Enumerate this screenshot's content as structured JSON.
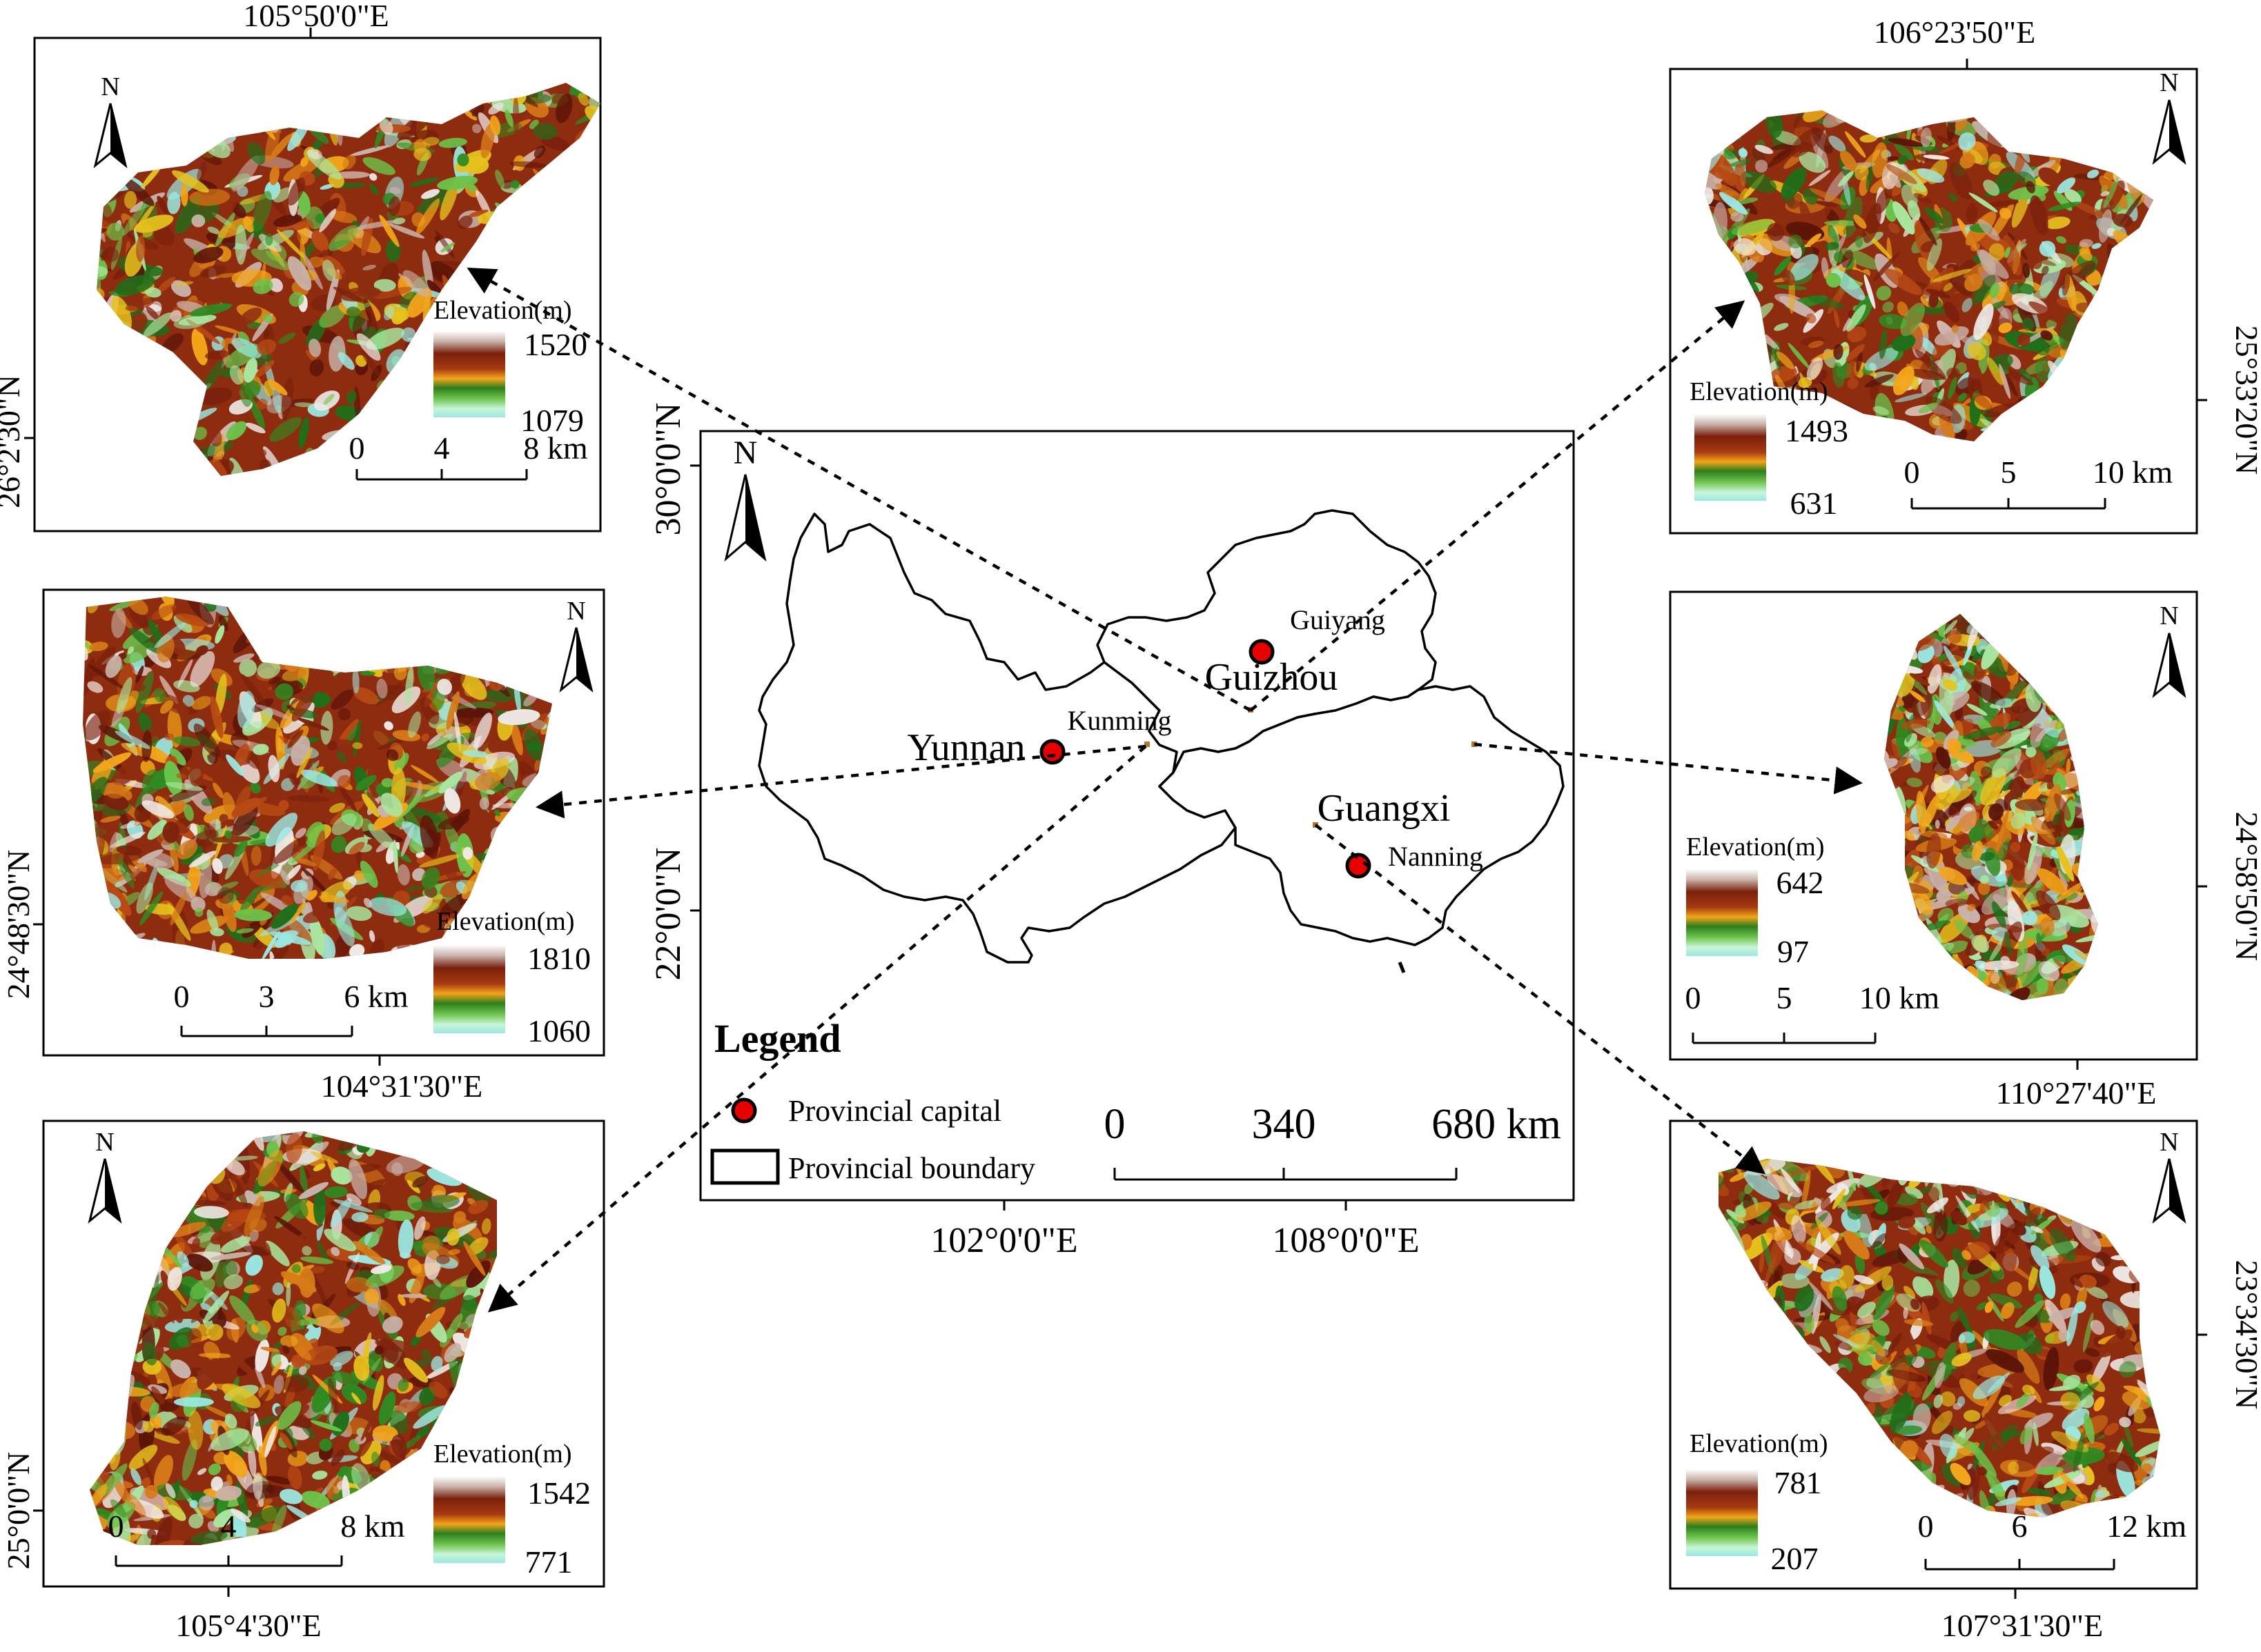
{
  "colors": {
    "frame": "#000000",
    "capital_fill": "#e60000",
    "ramp": [
      "#ffffff",
      "#6b1a0c",
      "#8b2a10",
      "#c85a1a",
      "#f0a000",
      "#2e7d1e",
      "#7bc043",
      "#c8f5d8",
      "#a8f0e8"
    ],
    "dem_tones": [
      "#5c1408",
      "#7a200c",
      "#8e2c10",
      "#b84a14",
      "#d77a18",
      "#f2a51a",
      "#e6c21e",
      "#2f8a22",
      "#1f6e1a",
      "#6cc24a",
      "#a9e6a0",
      "#9be8e2",
      "#efe9e6",
      "#c9b2aa"
    ]
  },
  "center": {
    "lon_labels": [
      "102°0'0\"E",
      "108°0'0\"E"
    ],
    "lat_labels": [
      "30°0'0\"N",
      "22°0'0\"N"
    ],
    "north": "N",
    "provinces": [
      "Yunnan",
      "Guizhou",
      "Guangxi"
    ],
    "capitals": [
      "Kunming",
      "Guiyang",
      "Nanning"
    ],
    "scale_ticks": [
      "0",
      "340",
      "680 km"
    ],
    "legend": {
      "title": "Legend",
      "capital_label": "Provincial capital",
      "boundary_label": "Provincial boundary"
    }
  },
  "insets": [
    {
      "id": "top-left",
      "coord_top": "105°50'0\"E",
      "coord_side": "26°2'30\"N",
      "north": "N",
      "legend_title": "Elevation(m)",
      "max": "1520",
      "min": "1079",
      "scale": [
        "0",
        "4",
        "8 km"
      ]
    },
    {
      "id": "mid-left",
      "coord_bottom": "104°31'30\"E",
      "coord_side": "24°48'30\"N",
      "north": "N",
      "legend_title": "Elevation(m)",
      "max": "1810",
      "min": "1060",
      "scale": [
        "0",
        "3",
        "6 km"
      ]
    },
    {
      "id": "bottom-left",
      "coord_bottom": "105°4'30\"E",
      "coord_side": "25°0'0\"N",
      "north": "N",
      "legend_title": "Elevation(m)",
      "max": "1542",
      "min": "771",
      "scale": [
        "0",
        "4",
        "8 km"
      ]
    },
    {
      "id": "top-right",
      "coord_top": "106°23'50\"E",
      "coord_side": "25°33'20\"N",
      "north": "N",
      "legend_title": "Elevation(m)",
      "max": "1493",
      "min": "631",
      "scale": [
        "0",
        "5",
        "10 km"
      ]
    },
    {
      "id": "mid-right",
      "coord_bottom": "110°27'40\"E",
      "coord_side": "24°58'50\"N",
      "north": "N",
      "legend_title": "Elevation(m)",
      "max": "642",
      "min": "97",
      "scale": [
        "0",
        "5",
        "10 km"
      ]
    },
    {
      "id": "bottom-right",
      "coord_bottom": "107°31'30\"E",
      "coord_side": "23°34'30\"N",
      "north": "N",
      "legend_title": "Elevation(m)",
      "max": "781",
      "min": "207",
      "scale": [
        "0",
        "6",
        "12 km"
      ]
    }
  ]
}
